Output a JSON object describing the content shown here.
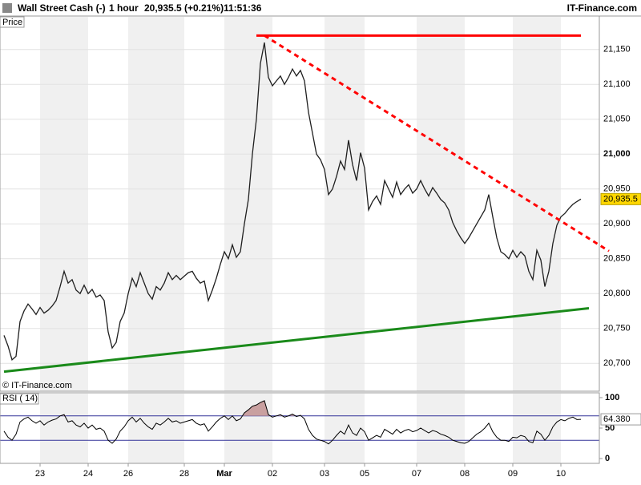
{
  "header": {
    "symbol": "Wall Street Cash (-)",
    "interval": "1 hour",
    "quote": "20,935.5 (+0.21%)",
    "time": "11:51:36",
    "brand": "IT-Finance.com"
  },
  "chart_data": [
    {
      "type": "line",
      "panel_label": "Price",
      "watermark": "© IT-Finance.com",
      "categories": [
        null,
        null,
        null,
        null,
        null,
        null,
        null,
        null,
        null,
        "23",
        null,
        null,
        null,
        null,
        null,
        null,
        null,
        null,
        null,
        null,
        null,
        "24",
        null,
        null,
        null,
        null,
        null,
        null,
        null,
        null,
        null,
        "26",
        null,
        null,
        null,
        null,
        null,
        null,
        null,
        null,
        null,
        null,
        null,
        null,
        null,
        "28",
        null,
        null,
        null,
        null,
        null,
        null,
        null,
        null,
        null,
        "Mar",
        null,
        null,
        null,
        null,
        null,
        null,
        null,
        null,
        null,
        null,
        null,
        "02",
        null,
        null,
        null,
        null,
        null,
        null,
        null,
        null,
        null,
        null,
        null,
        null,
        "03",
        null,
        null,
        null,
        null,
        null,
        null,
        null,
        null,
        null,
        "05",
        null,
        null,
        null,
        null,
        null,
        null,
        null,
        null,
        null,
        null,
        null,
        null,
        "07",
        null,
        null,
        null,
        null,
        null,
        null,
        null,
        null,
        null,
        null,
        null,
        "08",
        null,
        null,
        null,
        null,
        null,
        null,
        null,
        null,
        null,
        null,
        null,
        "09",
        null,
        null,
        null,
        null,
        null,
        null,
        null,
        null,
        null,
        null,
        null,
        "10",
        null,
        null,
        null,
        null,
        null
      ],
      "series": [
        {
          "color": "#1f1f1f",
          "values": [
            20740,
            20725,
            20705,
            20710,
            20760,
            20775,
            20785,
            20778,
            20770,
            20780,
            20772,
            20776,
            20782,
            20790,
            20810,
            20832,
            20815,
            20820,
            20805,
            20800,
            20812,
            20800,
            20806,
            20795,
            20798,
            20790,
            20745,
            20722,
            20730,
            20760,
            20772,
            20800,
            20822,
            20810,
            20830,
            20815,
            20800,
            20792,
            20810,
            20805,
            20815,
            20830,
            20820,
            20826,
            20820,
            20825,
            20830,
            20832,
            20822,
            20815,
            20818,
            20790,
            20805,
            20822,
            20842,
            20860,
            20850,
            20870,
            20852,
            20860,
            20900,
            20935,
            21000,
            21050,
            21130,
            21160,
            21110,
            21098,
            21105,
            21112,
            21100,
            21110,
            21122,
            21112,
            21120,
            21105,
            21060,
            21030,
            21000,
            20992,
            20978,
            20942,
            20950,
            20968,
            20990,
            20978,
            21020,
            20985,
            20962,
            21002,
            20980,
            20920,
            20932,
            20940,
            20928,
            20962,
            20950,
            20938,
            20960,
            20942,
            20950,
            20956,
            20944,
            20950,
            20962,
            20950,
            20940,
            20952,
            20944,
            20935,
            20930,
            20920,
            20902,
            20890,
            20880,
            20872,
            20880,
            20890,
            20900,
            20910,
            20920,
            20942,
            20910,
            20880,
            20860,
            20856,
            20850,
            20862,
            20852,
            20860,
            20854,
            20832,
            20820,
            20862,
            20848,
            20810,
            20832,
            20872,
            20898,
            20910,
            20915,
            20922,
            20928,
            20932,
            20935.5
          ],
          "value_labels": {
            "144": "20,935.5"
          }
        }
      ],
      "trendlines": [
        {
          "color": "#ff0000",
          "style": "solid",
          "x": [
            63,
            144
          ],
          "y": [
            21170,
            21170
          ]
        },
        {
          "color": "#ff0000",
          "style": "dashed",
          "x": [
            65,
            151
          ],
          "y": [
            21170,
            20861
          ]
        },
        {
          "color": "#1a8a1a",
          "style": "solid",
          "x": [
            0,
            146
          ],
          "y": [
            20688,
            20779
          ]
        }
      ],
      "ylim": [
        20660,
        21198
      ],
      "yticks": [
        {
          "value": 21150,
          "label": "21,150"
        },
        {
          "value": 21100,
          "label": "21,100"
        },
        {
          "value": 21050,
          "label": "21,050"
        },
        {
          "value": 21000,
          "label": "21,000"
        },
        {
          "value": 20950,
          "label": "20,950"
        },
        {
          "value": 20900,
          "label": "20,900"
        },
        {
          "value": 20850,
          "label": "20,850"
        },
        {
          "value": 20800,
          "label": "20,800"
        },
        {
          "value": 20750,
          "label": "20,750"
        },
        {
          "value": 20700,
          "label": "20,700"
        }
      ]
    },
    {
      "type": "line",
      "panel_label": "RSI ( 14)",
      "series": [
        {
          "color": "#000000",
          "values": [
            45,
            35,
            30,
            40,
            60,
            65,
            68,
            62,
            58,
            62,
            55,
            60,
            63,
            65,
            70,
            72,
            60,
            62,
            55,
            52,
            58,
            50,
            55,
            48,
            50,
            45,
            30,
            25,
            32,
            45,
            52,
            62,
            68,
            60,
            66,
            58,
            52,
            48,
            58,
            55,
            60,
            66,
            60,
            62,
            58,
            60,
            62,
            64,
            58,
            55,
            57,
            45,
            52,
            60,
            66,
            70,
            64,
            70,
            62,
            65,
            75,
            80,
            86,
            88,
            92,
            95,
            72,
            68,
            70,
            72,
            68,
            70,
            73,
            69,
            71,
            65,
            48,
            38,
            32,
            30,
            28,
            24,
            30,
            38,
            45,
            40,
            55,
            42,
            38,
            50,
            44,
            30,
            34,
            38,
            35,
            48,
            44,
            40,
            48,
            42,
            46,
            48,
            44,
            46,
            50,
            46,
            42,
            46,
            44,
            40,
            38,
            35,
            30,
            28,
            26,
            25,
            28,
            34,
            40,
            44,
            50,
            58,
            44,
            35,
            30,
            30,
            28,
            35,
            34,
            38,
            36,
            28,
            26,
            45,
            40,
            30,
            38,
            52,
            60,
            64,
            62,
            66,
            68,
            64,
            64.38
          ],
          "value_labels": {
            "144": "64.380"
          }
        }
      ],
      "levels": [
        70,
        30
      ],
      "overbought_color": "#c9a0a0",
      "ylim": [
        0,
        100
      ],
      "yticks": [
        100,
        50,
        0
      ]
    }
  ]
}
